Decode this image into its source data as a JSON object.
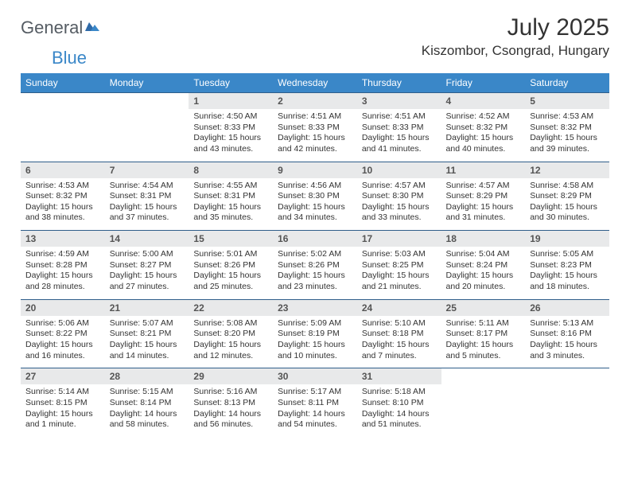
{
  "logo": {
    "text_gray": "General",
    "text_blue": "Blue"
  },
  "title": "July 2025",
  "location": "Kiszombor, Csongrad, Hungary",
  "colors": {
    "header_bg": "#3a87c8",
    "daynum_bg": "#e8e9ea",
    "week_border": "#2f5e8a",
    "text": "#333333",
    "logo_gray": "#555c63",
    "logo_blue": "#3a87c8"
  },
  "day_headers": [
    "Sunday",
    "Monday",
    "Tuesday",
    "Wednesday",
    "Thursday",
    "Friday",
    "Saturday"
  ],
  "weeks": [
    [
      {
        "n": "",
        "sr": "",
        "ss": "",
        "dl": ""
      },
      {
        "n": "",
        "sr": "",
        "ss": "",
        "dl": ""
      },
      {
        "n": "1",
        "sr": "4:50 AM",
        "ss": "8:33 PM",
        "dl": "15 hours and 43 minutes."
      },
      {
        "n": "2",
        "sr": "4:51 AM",
        "ss": "8:33 PM",
        "dl": "15 hours and 42 minutes."
      },
      {
        "n": "3",
        "sr": "4:51 AM",
        "ss": "8:33 PM",
        "dl": "15 hours and 41 minutes."
      },
      {
        "n": "4",
        "sr": "4:52 AM",
        "ss": "8:32 PM",
        "dl": "15 hours and 40 minutes."
      },
      {
        "n": "5",
        "sr": "4:53 AM",
        "ss": "8:32 PM",
        "dl": "15 hours and 39 minutes."
      }
    ],
    [
      {
        "n": "6",
        "sr": "4:53 AM",
        "ss": "8:32 PM",
        "dl": "15 hours and 38 minutes."
      },
      {
        "n": "7",
        "sr": "4:54 AM",
        "ss": "8:31 PM",
        "dl": "15 hours and 37 minutes."
      },
      {
        "n": "8",
        "sr": "4:55 AM",
        "ss": "8:31 PM",
        "dl": "15 hours and 35 minutes."
      },
      {
        "n": "9",
        "sr": "4:56 AM",
        "ss": "8:30 PM",
        "dl": "15 hours and 34 minutes."
      },
      {
        "n": "10",
        "sr": "4:57 AM",
        "ss": "8:30 PM",
        "dl": "15 hours and 33 minutes."
      },
      {
        "n": "11",
        "sr": "4:57 AM",
        "ss": "8:29 PM",
        "dl": "15 hours and 31 minutes."
      },
      {
        "n": "12",
        "sr": "4:58 AM",
        "ss": "8:29 PM",
        "dl": "15 hours and 30 minutes."
      }
    ],
    [
      {
        "n": "13",
        "sr": "4:59 AM",
        "ss": "8:28 PM",
        "dl": "15 hours and 28 minutes."
      },
      {
        "n": "14",
        "sr": "5:00 AM",
        "ss": "8:27 PM",
        "dl": "15 hours and 27 minutes."
      },
      {
        "n": "15",
        "sr": "5:01 AM",
        "ss": "8:26 PM",
        "dl": "15 hours and 25 minutes."
      },
      {
        "n": "16",
        "sr": "5:02 AM",
        "ss": "8:26 PM",
        "dl": "15 hours and 23 minutes."
      },
      {
        "n": "17",
        "sr": "5:03 AM",
        "ss": "8:25 PM",
        "dl": "15 hours and 21 minutes."
      },
      {
        "n": "18",
        "sr": "5:04 AM",
        "ss": "8:24 PM",
        "dl": "15 hours and 20 minutes."
      },
      {
        "n": "19",
        "sr": "5:05 AM",
        "ss": "8:23 PM",
        "dl": "15 hours and 18 minutes."
      }
    ],
    [
      {
        "n": "20",
        "sr": "5:06 AM",
        "ss": "8:22 PM",
        "dl": "15 hours and 16 minutes."
      },
      {
        "n": "21",
        "sr": "5:07 AM",
        "ss": "8:21 PM",
        "dl": "15 hours and 14 minutes."
      },
      {
        "n": "22",
        "sr": "5:08 AM",
        "ss": "8:20 PM",
        "dl": "15 hours and 12 minutes."
      },
      {
        "n": "23",
        "sr": "5:09 AM",
        "ss": "8:19 PM",
        "dl": "15 hours and 10 minutes."
      },
      {
        "n": "24",
        "sr": "5:10 AM",
        "ss": "8:18 PM",
        "dl": "15 hours and 7 minutes."
      },
      {
        "n": "25",
        "sr": "5:11 AM",
        "ss": "8:17 PM",
        "dl": "15 hours and 5 minutes."
      },
      {
        "n": "26",
        "sr": "5:13 AM",
        "ss": "8:16 PM",
        "dl": "15 hours and 3 minutes."
      }
    ],
    [
      {
        "n": "27",
        "sr": "5:14 AM",
        "ss": "8:15 PM",
        "dl": "15 hours and 1 minute."
      },
      {
        "n": "28",
        "sr": "5:15 AM",
        "ss": "8:14 PM",
        "dl": "14 hours and 58 minutes."
      },
      {
        "n": "29",
        "sr": "5:16 AM",
        "ss": "8:13 PM",
        "dl": "14 hours and 56 minutes."
      },
      {
        "n": "30",
        "sr": "5:17 AM",
        "ss": "8:11 PM",
        "dl": "14 hours and 54 minutes."
      },
      {
        "n": "31",
        "sr": "5:18 AM",
        "ss": "8:10 PM",
        "dl": "14 hours and 51 minutes."
      },
      {
        "n": "",
        "sr": "",
        "ss": "",
        "dl": ""
      },
      {
        "n": "",
        "sr": "",
        "ss": "",
        "dl": ""
      }
    ]
  ],
  "labels": {
    "sunrise": "Sunrise:",
    "sunset": "Sunset:",
    "daylight": "Daylight:"
  }
}
